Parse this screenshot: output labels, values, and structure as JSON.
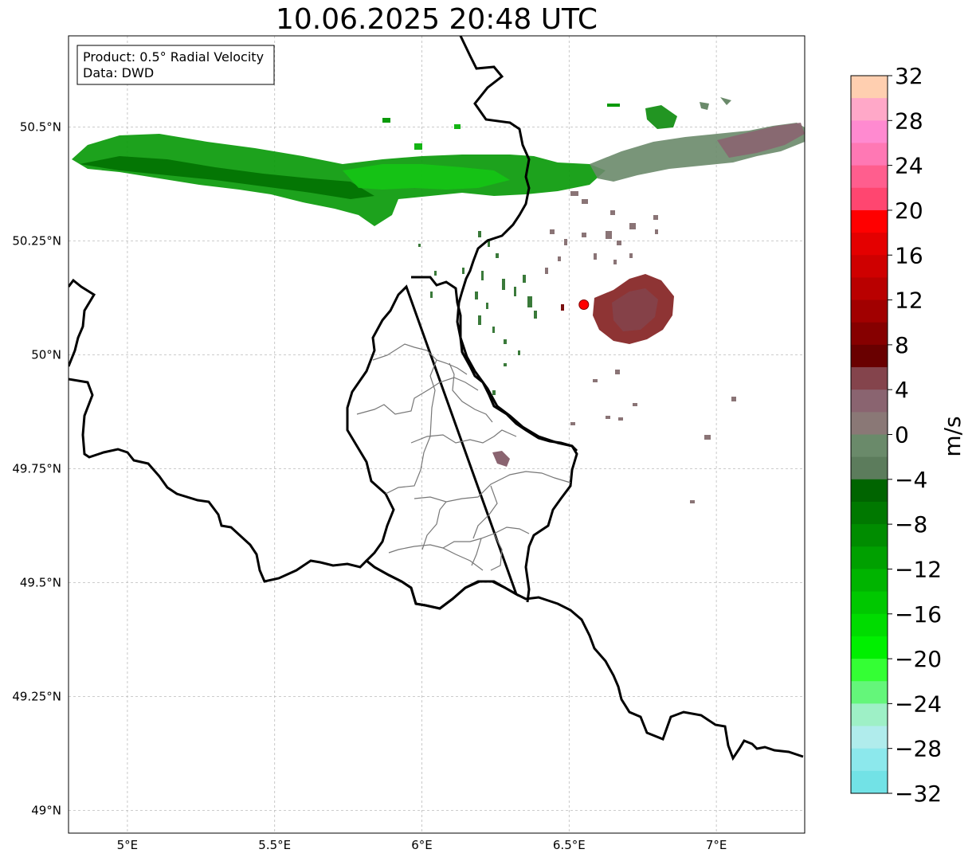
{
  "title": "10.06.2025 20:48 UTC",
  "info_box": {
    "product": "Product: 0.5° Radial Velocity",
    "data": "Data: DWD"
  },
  "map": {
    "lon_range": [
      4.8,
      7.3
    ],
    "lat_range": [
      48.95,
      50.7
    ],
    "lon_ticks": [
      {
        "value": 5.0,
        "label": "5°E"
      },
      {
        "value": 5.5,
        "label": "5.5°E"
      },
      {
        "value": 6.0,
        "label": "6°E"
      },
      {
        "value": 6.5,
        "label": "6.5°E"
      },
      {
        "value": 7.0,
        "label": "7°E"
      }
    ],
    "lat_ticks": [
      {
        "value": 50.5,
        "label": "50.5°N"
      },
      {
        "value": 50.25,
        "label": "50.25°N"
      },
      {
        "value": 50.0,
        "label": "50°N"
      },
      {
        "value": 49.75,
        "label": "49.75°N"
      },
      {
        "value": 49.5,
        "label": "49.5°N"
      },
      {
        "value": 49.25,
        "label": "49.25°N"
      },
      {
        "value": 49.0,
        "label": "49°N"
      }
    ],
    "gridlines": true,
    "radar_site": {
      "lon": 6.55,
      "lat": 50.11,
      "color": "#ff0000"
    }
  },
  "colorbar": {
    "unit": "m/s",
    "min": -32,
    "max": 32,
    "labels": [
      "32",
      "28",
      "24",
      "20",
      "16",
      "12",
      "8",
      "4",
      "0",
      "−4",
      "−8",
      "−12",
      "−16",
      "−20",
      "−24",
      "−28",
      "−32"
    ],
    "colors_top_to_bottom": [
      "#ffcfb0",
      "#ffa8c8",
      "#ff8ad0",
      "#ff78b4",
      "#ff5e8e",
      "#ff4670",
      "#ff0000",
      "#e40000",
      "#cf0000",
      "#b90000",
      "#a10000",
      "#860000",
      "#690000",
      "#84444c",
      "#8a6470",
      "#8a7876",
      "#6a8a6a",
      "#5c7c5c",
      "#006400",
      "#007800",
      "#008c00",
      "#00a000",
      "#00b400",
      "#00c800",
      "#00dc00",
      "#00f000",
      "#34ff34",
      "#64f67a",
      "#9ef0c6",
      "#b0ecec",
      "#8ce8ec",
      "#72e2e6"
    ]
  }
}
